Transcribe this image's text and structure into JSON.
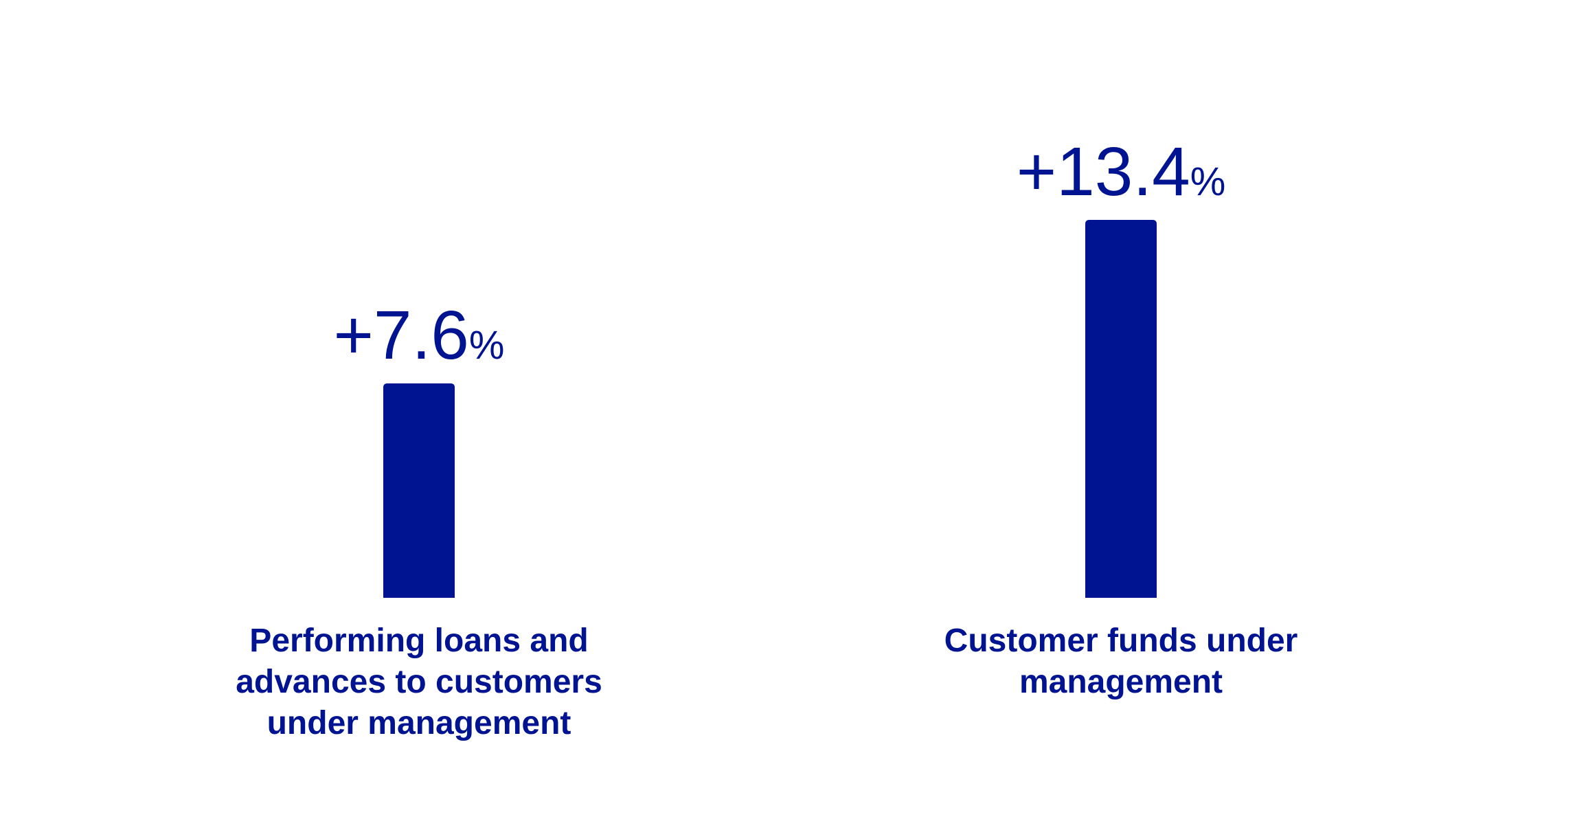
{
  "chart_data": {
    "type": "bar",
    "categories": [
      "Performing loans and advances to customers under management",
      "Customer funds under management"
    ],
    "category_lines": [
      [
        "Performing loans and",
        "advances to customers",
        "under management"
      ],
      [
        "Customer funds under",
        "management"
      ]
    ],
    "values": [
      7.6,
      13.4
    ],
    "value_labels": [
      {
        "number": "+7.6",
        "unit": "%"
      },
      {
        "number": "+13.4",
        "unit": "%"
      }
    ],
    "unit": "%",
    "title": "",
    "xlabel": "",
    "ylabel": "",
    "ylim": [
      0,
      13.4
    ],
    "grid": false,
    "legend": "none",
    "colors": {
      "bar": "#001391",
      "text": "#001391",
      "background": "#ffffff"
    }
  }
}
